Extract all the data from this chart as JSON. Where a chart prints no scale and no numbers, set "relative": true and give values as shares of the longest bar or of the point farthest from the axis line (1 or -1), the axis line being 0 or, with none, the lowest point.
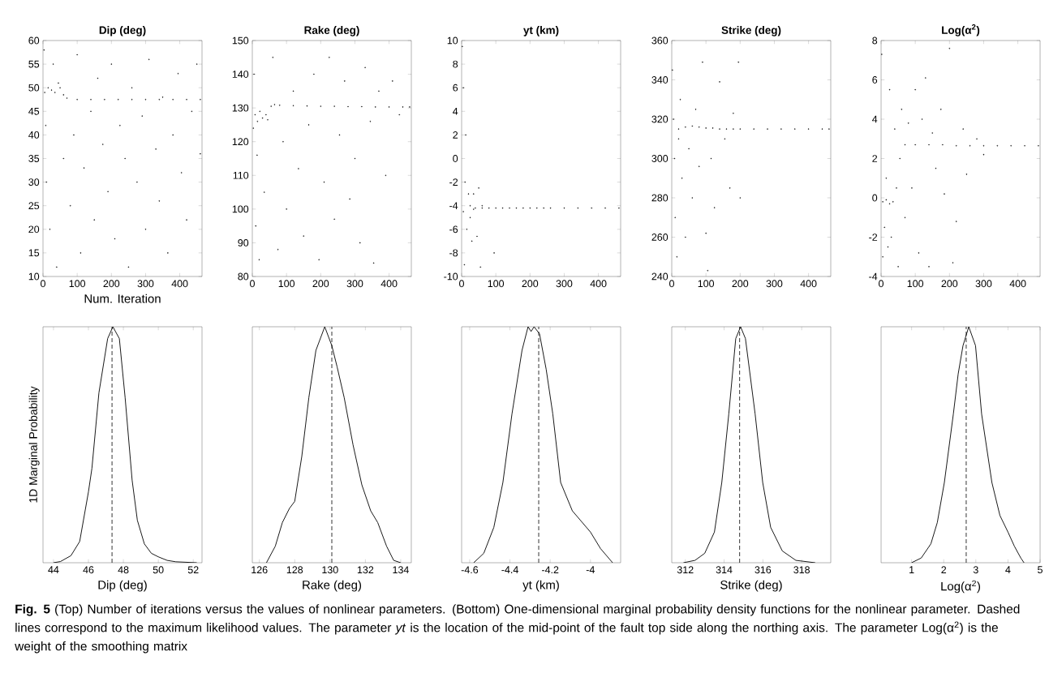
{
  "chart_data": [
    {
      "type": "scatter",
      "title": "Dip (deg)",
      "xlabel": "Num. Iteration",
      "xlim": [
        0,
        465
      ],
      "xticks": [
        0,
        100,
        200,
        300,
        400
      ],
      "ylim": [
        10,
        60
      ],
      "yticks": [
        10,
        15,
        20,
        25,
        30,
        35,
        40,
        45,
        50,
        55,
        60
      ],
      "annotations": [
        "**Fig. 5** (Top) Number of iterations versus the values of nonlinear parameters. (Bottom) One-dimensional marginal probability density functions for the nonlinear parameter. Dashed lines correspond to the maximum likelihood values. The parameter *yt* is the location of the mid-point of the fault top side along the northing axis. The parameter Log(α$^{2}$) is the weight of the smoothing matrix"
      ],
      "series": [
        {
          "color": "#000000",
          "x": [
            3,
            5,
            8,
            10,
            15,
            20,
            25,
            30,
            35,
            40,
            45,
            50,
            60,
            70,
            60,
            80,
            90,
            100,
            110,
            120,
            140,
            150,
            160,
            175,
            190,
            200,
            210,
            225,
            240,
            250,
            260,
            275,
            290,
            300,
            310,
            330,
            340,
            350,
            365,
            380,
            395,
            405,
            420,
            435,
            450,
            460,
            100,
            140,
            180,
            220,
            260,
            300,
            340,
            380,
            420,
            460
          ],
          "values": [
            58,
            49,
            42,
            30,
            50,
            20,
            49.5,
            55,
            49,
            12,
            51,
            50,
            48.5,
            47.8,
            35,
            25,
            40,
            57,
            15,
            33,
            45,
            22,
            52,
            38,
            28,
            55,
            18,
            42,
            35,
            12,
            50,
            30,
            44,
            20,
            56,
            37,
            26,
            48,
            15,
            40,
            53,
            32,
            22,
            45,
            55,
            36,
            47.5,
            47.5,
            47.5,
            47.5,
            47.5,
            47.5,
            47.5,
            47.5,
            47.5,
            47.5
          ]
        }
      ]
    },
    {
      "type": "scatter",
      "title": "Rake (deg)",
      "xlim": [
        0,
        465
      ],
      "xticks": [
        0,
        100,
        200,
        300,
        400
      ],
      "ylim": [
        80,
        150
      ],
      "yticks": [
        80,
        90,
        100,
        110,
        120,
        130,
        140,
        150
      ],
      "series": [
        {
          "color": "#000000",
          "x": [
            3,
            5,
            8,
            10,
            14,
            15,
            20,
            22,
            30,
            35,
            40,
            45,
            55,
            60,
            65,
            75,
            90,
            100,
            120,
            135,
            150,
            165,
            180,
            195,
            210,
            225,
            240,
            255,
            270,
            285,
            300,
            315,
            330,
            345,
            355,
            370,
            390,
            410,
            430,
            80,
            120,
            160,
            200,
            240,
            280,
            320,
            360,
            400,
            440,
            460
          ],
          "values": [
            124,
            140,
            128,
            95,
            116,
            126,
            85,
            129,
            127,
            105,
            128,
            126.5,
            130.5,
            145,
            131,
            88,
            120,
            100,
            135,
            112,
            92,
            125,
            140,
            85,
            108,
            145,
            97,
            122,
            138,
            103,
            115,
            90,
            142,
            126,
            84,
            135,
            110,
            138,
            128,
            130.8,
            130.7,
            130.6,
            130.5,
            130.5,
            130.4,
            130.4,
            130.3,
            130.3,
            130.3,
            130.3
          ]
        }
      ]
    },
    {
      "type": "scatter",
      "title": "yt (km)",
      "xlim": [
        0,
        465
      ],
      "xticks": [
        0,
        100,
        200,
        300,
        400
      ],
      "ylim": [
        -10,
        10
      ],
      "yticks": [
        -10,
        -8,
        -6,
        -4,
        -2,
        0,
        2,
        4,
        6,
        8,
        10
      ],
      "series": [
        {
          "color": "#000000",
          "x": [
            2,
            5,
            5,
            8,
            10,
            12,
            15,
            20,
            25,
            25,
            30,
            35,
            35,
            45,
            50,
            55,
            60,
            95,
            40,
            60,
            80,
            100,
            120,
            140,
            160,
            180,
            200,
            220,
            240,
            260,
            300,
            340,
            380,
            420,
            460
          ],
          "values": [
            9.5,
            6,
            -4.5,
            -9,
            -2,
            2,
            -6,
            -3,
            -5,
            -4,
            -7,
            -3,
            -4.3,
            -6.6,
            -2.5,
            -9.2,
            -4,
            -8,
            -4.2,
            -4.2,
            -4.2,
            -4.2,
            -4.2,
            -4.2,
            -4.2,
            -4.2,
            -4.2,
            -4.2,
            -4.2,
            -4.2,
            -4.2,
            -4.2,
            -4.2,
            -4.2,
            -4.2
          ]
        }
      ]
    },
    {
      "type": "scatter",
      "title": "Strike (deg)",
      "xlim": [
        0,
        465
      ],
      "xticks": [
        0,
        100,
        200,
        300,
        400
      ],
      "ylim": [
        240,
        360
      ],
      "yticks": [
        240,
        260,
        280,
        300,
        320,
        340,
        360
      ],
      "series": [
        {
          "color": "#000000",
          "x": [
            2,
            5,
            8,
            10,
            15,
            20,
            25,
            30,
            40,
            50,
            60,
            70,
            80,
            90,
            100,
            105,
            115,
            125,
            140,
            155,
            170,
            180,
            195,
            200,
            20,
            40,
            60,
            80,
            100,
            120,
            140,
            160,
            180,
            200,
            240,
            280,
            320,
            360,
            400,
            440,
            460
          ],
          "values": [
            345,
            320,
            300,
            270,
            250,
            310,
            330,
            290,
            260,
            305,
            280,
            325,
            296,
            349,
            262,
            243,
            300,
            275,
            339,
            310,
            285,
            323,
            349,
            280,
            315,
            316,
            316.5,
            316,
            315.5,
            315.5,
            315,
            315,
            315,
            315,
            315,
            315,
            315,
            315,
            315,
            315,
            315
          ]
        }
      ]
    },
    {
      "type": "scatter",
      "title": "Log(α$^{2}$)",
      "xlim": [
        0,
        465
      ],
      "xticks": [
        0,
        100,
        200,
        300,
        400
      ],
      "ylim": [
        -4,
        8
      ],
      "yticks": [
        -4,
        -2,
        0,
        2,
        4,
        6,
        8
      ],
      "series": [
        {
          "color": "#000000",
          "x": [
            2,
            5,
            10,
            15,
            20,
            25,
            30,
            40,
            50,
            60,
            70,
            80,
            90,
            100,
            110,
            120,
            130,
            140,
            150,
            160,
            175,
            185,
            200,
            210,
            220,
            240,
            250,
            280,
            300,
            5,
            15,
            25,
            35,
            45,
            55,
            70,
            100,
            140,
            180,
            220,
            260,
            300,
            340,
            380,
            420,
            460
          ],
          "values": [
            7.3,
            -3,
            -1.5,
            1,
            -2.5,
            5.5,
            -2,
            3.5,
            -3.5,
            4.5,
            -1,
            3.8,
            0.5,
            5.5,
            -2.8,
            4,
            6.1,
            -3.5,
            3.3,
            1.5,
            4.5,
            0.2,
            7.6,
            -3.3,
            -1.2,
            3.5,
            1.2,
            3,
            2.2,
            -0.2,
            -0.1,
            -0.3,
            -0.2,
            0.5,
            2,
            2.7,
            2.7,
            2.7,
            2.7,
            2.65,
            2.65,
            2.65,
            2.65,
            2.65,
            2.65,
            2.65
          ]
        }
      ]
    },
    {
      "type": "line",
      "relative": true,
      "xlabel": "Dip (deg)",
      "ylabel": "1D Marginal Probability",
      "xlim": [
        43.4,
        52.5
      ],
      "xticks": [
        44,
        46,
        48,
        50,
        52
      ],
      "ref_lines": [
        {
          "axis": "x",
          "value": 47.35,
          "line_style": "dashed"
        }
      ],
      "series": [
        {
          "color": "#000000",
          "x": [
            44.0,
            44.4,
            45,
            45.5,
            46,
            46.2,
            46.6,
            47.1,
            47.4,
            47.77,
            48.1,
            48.5,
            48.8,
            49.2,
            49.6,
            50,
            50.5,
            51,
            52.2
          ],
          "values": [
            0,
            0.005,
            0.03,
            0.09,
            0.3,
            0.4,
            0.72,
            0.95,
            1.0,
            0.95,
            0.7,
            0.35,
            0.18,
            0.08,
            0.04,
            0.025,
            0.01,
            0.004,
            0
          ]
        }
      ]
    },
    {
      "type": "line",
      "relative": true,
      "xlabel": "Rake (deg)",
      "xlim": [
        125.6,
        134.6
      ],
      "xticks": [
        126,
        128,
        130,
        132,
        134
      ],
      "ref_lines": [
        {
          "axis": "x",
          "value": 130.1,
          "line_style": "dashed"
        }
      ],
      "series": [
        {
          "color": "#000000",
          "x": [
            126.4,
            126.9,
            127.3,
            127.7,
            128.0,
            128.4,
            128.8,
            129.2,
            129.7,
            130.1,
            130.4,
            130.8,
            131.3,
            131.8,
            132.3,
            132.7,
            133.2,
            133.6,
            134.0
          ],
          "values": [
            0,
            0.07,
            0.17,
            0.23,
            0.26,
            0.45,
            0.7,
            0.9,
            1.0,
            0.92,
            0.83,
            0.7,
            0.5,
            0.33,
            0.22,
            0.17,
            0.07,
            0.01,
            0
          ]
        }
      ]
    },
    {
      "type": "line",
      "relative": true,
      "xlabel": "yt (km)",
      "xlim": [
        -4.64,
        -3.85
      ],
      "xticks": [
        -4.6,
        -4.4,
        -4.2,
        -4
      ],
      "ref_lines": [
        {
          "axis": "x",
          "value": -4.257,
          "line_style": "dashed"
        }
      ],
      "series": [
        {
          "color": "#000000",
          "x": [
            -4.58,
            -4.53,
            -4.48,
            -4.435,
            -4.39,
            -4.34,
            -4.31,
            -4.295,
            -4.28,
            -4.253,
            -4.22,
            -4.187,
            -4.148,
            -4.09,
            -4.0,
            -3.95,
            -3.89
          ],
          "values": [
            0,
            0.04,
            0.15,
            0.34,
            0.63,
            0.9,
            1.0,
            0.98,
            1.0,
            0.97,
            0.82,
            0.63,
            0.34,
            0.22,
            0.13,
            0.06,
            0
          ]
        }
      ]
    },
    {
      "type": "line",
      "relative": true,
      "xlabel": "Strike (deg)",
      "xlim": [
        311.3,
        319.5
      ],
      "xticks": [
        312,
        314,
        316,
        318
      ],
      "ref_lines": [
        {
          "axis": "x",
          "value": 314.8,
          "line_style": "dashed"
        }
      ],
      "series": [
        {
          "color": "#000000",
          "x": [
            311.9,
            312.5,
            313,
            313.5,
            313.88,
            314.24,
            314.6,
            314.85,
            315.1,
            315.6,
            315.99,
            316.4,
            317,
            317.7,
            318.7
          ],
          "values": [
            0,
            0.01,
            0.04,
            0.13,
            0.34,
            0.63,
            0.95,
            1.0,
            0.95,
            0.63,
            0.34,
            0.15,
            0.05,
            0.01,
            0
          ]
        }
      ]
    },
    {
      "type": "line",
      "relative": true,
      "xlabel": "Log(α$^{2}$)",
      "xlim": [
        0.05,
        5.0
      ],
      "xticks": [
        1,
        2,
        3,
        4,
        5
      ],
      "ref_lines": [
        {
          "axis": "x",
          "value": 2.7,
          "line_style": "dashed"
        }
      ],
      "series": [
        {
          "color": "#000000",
          "x": [
            1.0,
            1.3,
            1.6,
            1.8,
            2.02,
            2.3,
            2.45,
            2.6,
            2.78,
            2.99,
            3.18,
            3.5,
            3.75,
            4.0,
            4.2,
            4.4,
            4.5
          ],
          "values": [
            0,
            0.02,
            0.08,
            0.17,
            0.34,
            0.63,
            0.8,
            0.92,
            1.0,
            0.92,
            0.63,
            0.34,
            0.2,
            0.13,
            0.07,
            0.02,
            0
          ]
        }
      ]
    }
  ]
}
